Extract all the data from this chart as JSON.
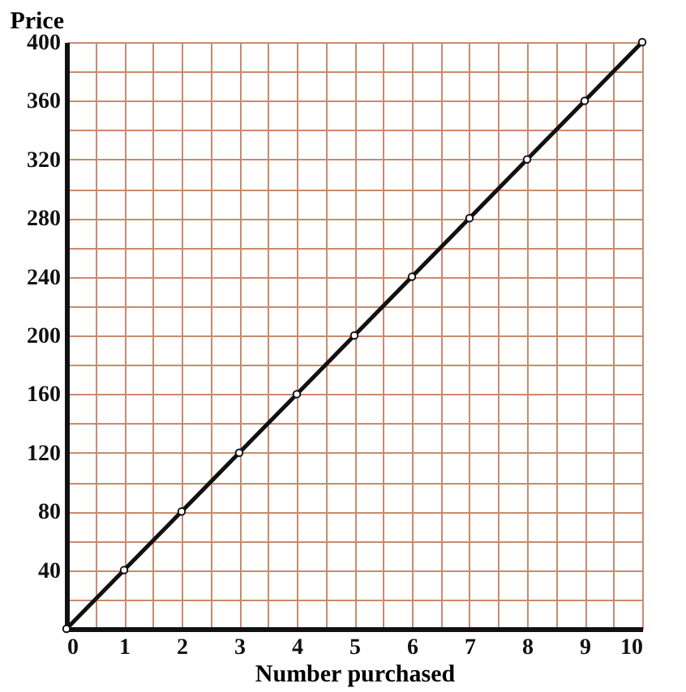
{
  "chart_data": {
    "type": "line",
    "xlabel": "Number purchased",
    "ylabel": "Price",
    "x": [
      0,
      1,
      2,
      3,
      4,
      5,
      6,
      7,
      8,
      9,
      10
    ],
    "series": [
      {
        "color": "#111111",
        "values": [
          0,
          40,
          80,
          120,
          160,
          200,
          240,
          280,
          320,
          360,
          400
        ]
      }
    ],
    "xlim": [
      0,
      10
    ],
    "ylim": [
      0,
      400
    ],
    "xticks": [
      0,
      {
        "value": 0.5,
        "label": null
      },
      1,
      {
        "value": 1.5,
        "label": null
      },
      2,
      {
        "value": 2.5,
        "label": null
      },
      3,
      {
        "value": 3.5,
        "label": null
      },
      4,
      {
        "value": 4.5,
        "label": null
      },
      5,
      {
        "value": 5.5,
        "label": null
      },
      6,
      {
        "value": 6.5,
        "label": null
      },
      7,
      {
        "value": 7.5,
        "label": null
      },
      8,
      {
        "value": 8.5,
        "label": null
      },
      9,
      {
        "value": 9.5,
        "label": null
      },
      10
    ],
    "yticks": [
      {
        "value": 0,
        "label": null
      },
      {
        "value": 20,
        "label": null
      },
      40,
      {
        "value": 60,
        "label": null
      },
      80,
      {
        "value": 100,
        "label": null
      },
      120,
      {
        "value": 140,
        "label": null
      },
      160,
      {
        "value": 180,
        "label": null
      },
      200,
      {
        "value": 220,
        "label": null
      },
      240,
      {
        "value": 260,
        "label": null
      },
      280,
      {
        "value": 300,
        "label": null
      },
      320,
      {
        "value": 340,
        "label": null
      },
      360,
      {
        "value": 380,
        "label": null
      },
      400
    ],
    "grid": true,
    "marker": "circle",
    "line_style": "solid"
  }
}
